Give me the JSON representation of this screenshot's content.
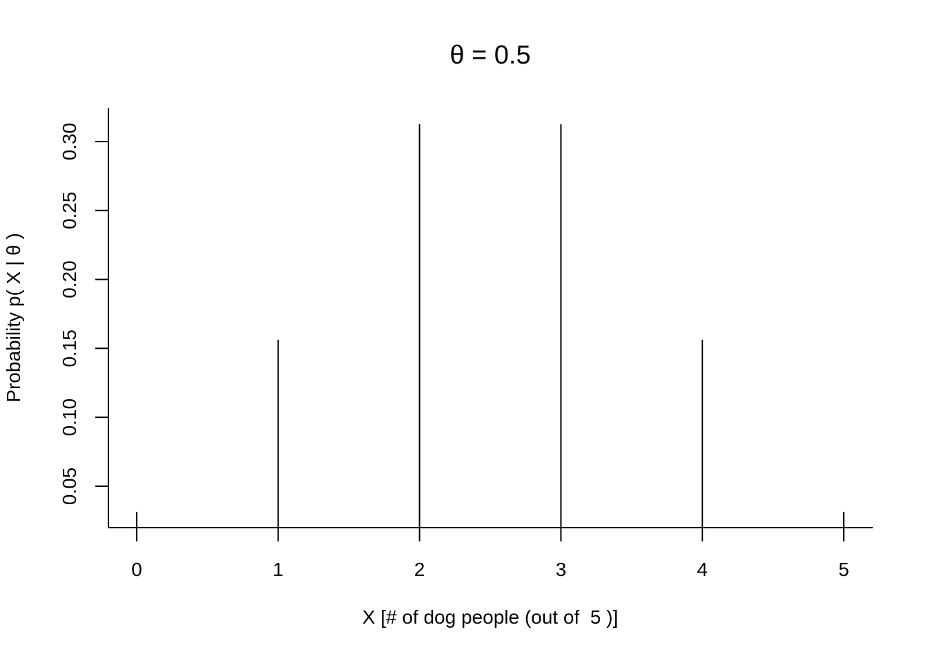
{
  "chart_data": {
    "type": "bar",
    "title": "θ = 0.5",
    "xlabel": "X [# of dog people (out of  5 )]",
    "ylabel": "Probability p( X | θ )",
    "x": [
      0,
      1,
      2,
      3,
      4,
      5
    ],
    "values": [
      0.03125,
      0.15625,
      0.3125,
      0.3125,
      0.15625,
      0.03125
    ],
    "x_ticks": [
      "0",
      "1",
      "2",
      "3",
      "4",
      "5"
    ],
    "y_ticks": [
      "0.05",
      "0.10",
      "0.15",
      "0.20",
      "0.25",
      "0.30"
    ],
    "xlim": [
      -0.2,
      5.2
    ],
    "ylim": [
      0.02,
      0.32
    ],
    "grid": false,
    "legend": "none",
    "colors": {
      "line": "#000000",
      "background": "#ffffff"
    }
  }
}
